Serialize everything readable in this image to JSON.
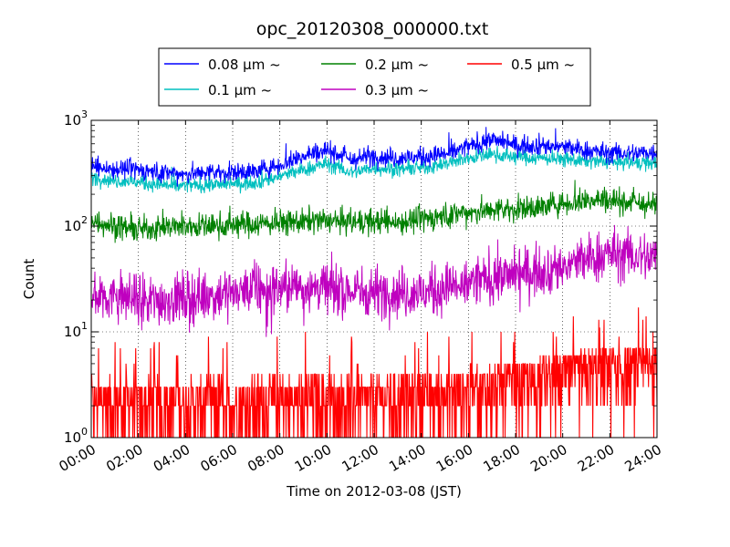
{
  "chart_data": {
    "type": "line",
    "title": "opc_20120308_000000.txt",
    "xlabel": "Time on 2012-03-08 (JST)",
    "ylabel": "Count",
    "yscale": "log",
    "ylim": [
      1,
      1000
    ],
    "xlim": [
      "00:00",
      "24:00"
    ],
    "x_ticks": [
      "00:00",
      "02:00",
      "04:00",
      "06:00",
      "08:00",
      "10:00",
      "12:00",
      "14:00",
      "16:00",
      "18:00",
      "20:00",
      "22:00",
      "24:00"
    ],
    "y_ticks": [
      {
        "value": 1,
        "base": "10",
        "exp": "0"
      },
      {
        "value": 10,
        "base": "10",
        "exp": "1"
      },
      {
        "value": 100,
        "base": "10",
        "exp": "2"
      },
      {
        "value": 1000,
        "base": "10",
        "exp": "3"
      }
    ],
    "grid": true,
    "legend_position": "top",
    "x_hours": [
      0,
      1,
      2,
      3,
      4,
      5,
      6,
      7,
      8,
      9,
      10,
      11,
      12,
      13,
      14,
      15,
      16,
      17,
      18,
      19,
      20,
      21,
      22,
      23,
      24
    ],
    "series": [
      {
        "name": "0.08 μm ~",
        "color": "#0000ff",
        "values": [
          360,
          350,
          340,
          320,
          310,
          320,
          320,
          330,
          380,
          460,
          530,
          420,
          460,
          440,
          450,
          480,
          560,
          660,
          580,
          580,
          560,
          520,
          490,
          490,
          500
        ]
      },
      {
        "name": "0.1 μm ~",
        "color": "#00bfbf",
        "values": [
          290,
          270,
          260,
          245,
          240,
          245,
          250,
          260,
          295,
          340,
          390,
          320,
          355,
          345,
          355,
          385,
          440,
          480,
          450,
          440,
          430,
          410,
          400,
          395,
          395
        ]
      },
      {
        "name": "0.2 μm ~",
        "color": "#008000",
        "values": [
          115,
          100,
          92,
          98,
          100,
          100,
          103,
          105,
          108,
          110,
          112,
          108,
          110,
          110,
          115,
          125,
          135,
          140,
          145,
          150,
          165,
          175,
          180,
          165,
          155
        ]
      },
      {
        "name": "0.3 μm ~",
        "color": "#bf00bf",
        "values": [
          24,
          22,
          20,
          20,
          21,
          22,
          24,
          25,
          26,
          27,
          26,
          24,
          24,
          24,
          23,
          26,
          29,
          32,
          35,
          38,
          42,
          48,
          55,
          52,
          50
        ]
      },
      {
        "name": "0.5 μm ~",
        "color": "#ff0000",
        "values": [
          2.2,
          2.2,
          2.1,
          2.1,
          2.1,
          2.2,
          2.2,
          2.2,
          2.3,
          2.3,
          2.3,
          2.3,
          2.3,
          2.3,
          2.4,
          2.5,
          2.7,
          2.9,
          3.1,
          3.3,
          3.6,
          4.0,
          4.5,
          4.5,
          4.3
        ]
      }
    ]
  }
}
